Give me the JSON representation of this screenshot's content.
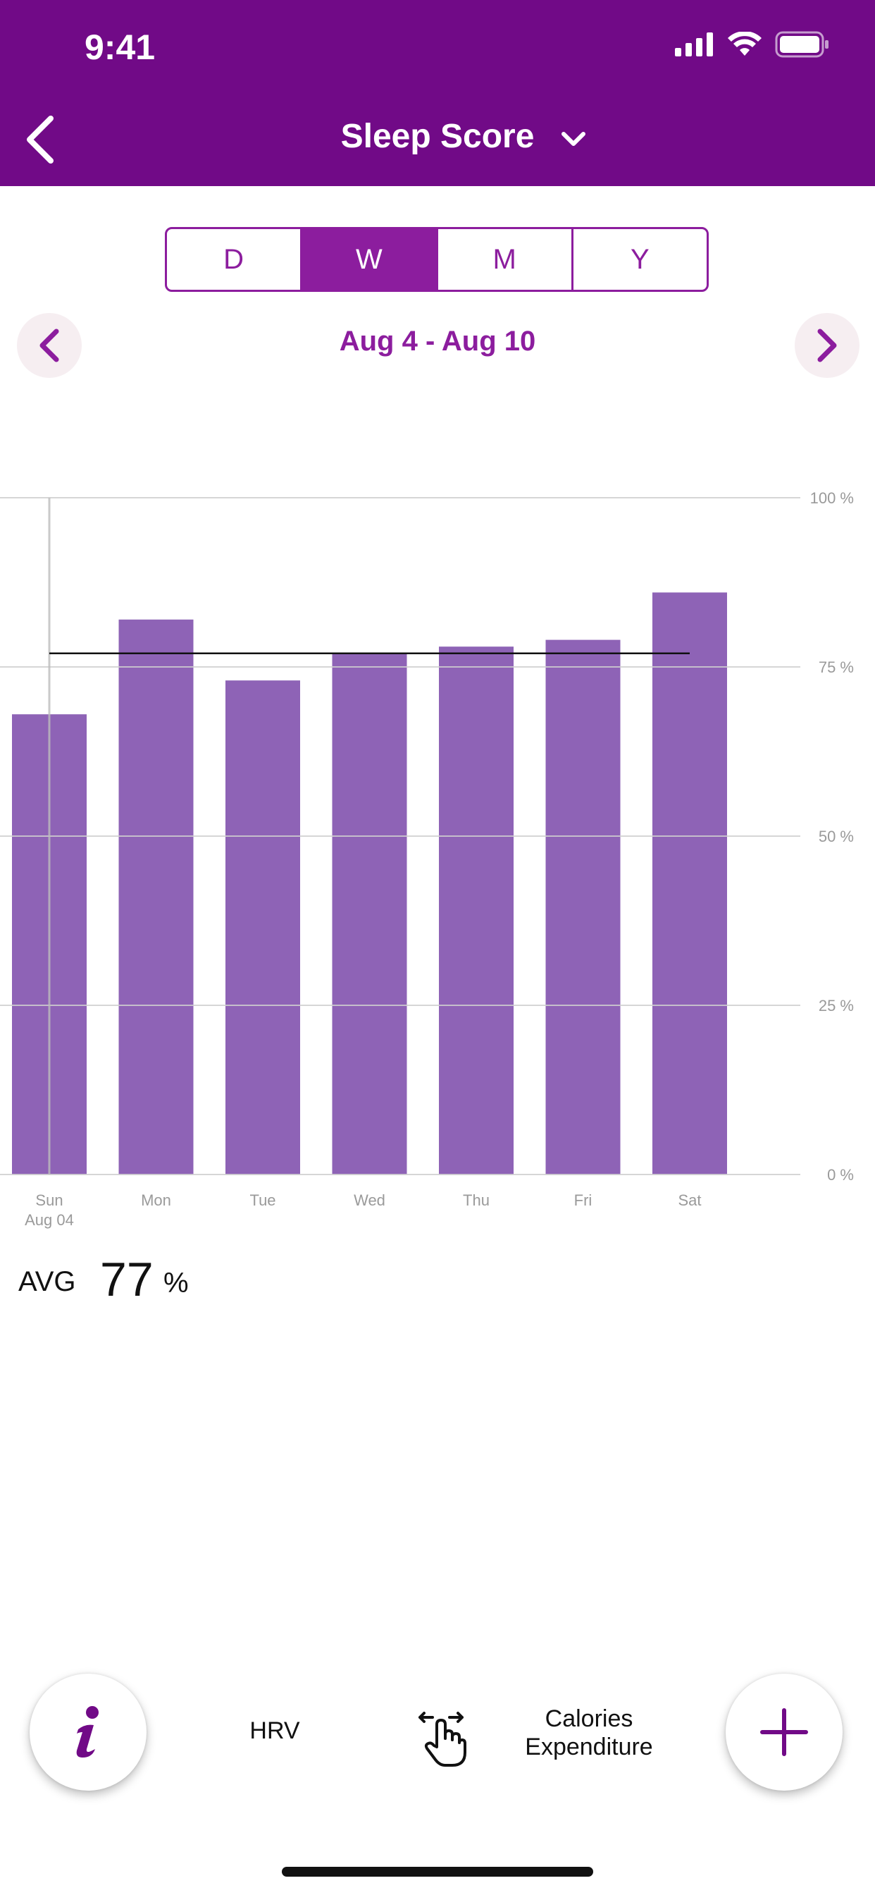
{
  "status_bar": {
    "time": "9:41"
  },
  "header": {
    "title": "Sleep Score"
  },
  "segments": [
    {
      "label": "D",
      "active": false
    },
    {
      "label": "W",
      "active": true
    },
    {
      "label": "M",
      "active": false
    },
    {
      "label": "Y",
      "active": false
    }
  ],
  "date_range": "Aug 4 - Aug 10",
  "chart_data": {
    "type": "bar",
    "categories": [
      "Sun",
      "Mon",
      "Tue",
      "Wed",
      "Thu",
      "Fri",
      "Sat"
    ],
    "category_sublabels": [
      "Aug 04",
      "",
      "",
      "",
      "",
      "",
      ""
    ],
    "values": [
      68,
      82,
      73,
      77,
      78,
      79,
      86
    ],
    "average": 77,
    "ylim": [
      0,
      100
    ],
    "yticks": [
      "0 %",
      "25 %",
      "50 %",
      "75 %",
      "100 %"
    ],
    "ytick_values": [
      0,
      25,
      50,
      75,
      100
    ],
    "selected_index": 0,
    "grid": true,
    "bar_color": "#8E63B6"
  },
  "summary": {
    "avg_label": "AVG",
    "avg_value": "77",
    "avg_unit": "%"
  },
  "bottom_bar": {
    "left_label": "HRV",
    "right_label": "Calories\nExpenditure"
  },
  "colors": {
    "brand": "#710A87",
    "accent": "#8C1D9E",
    "bar": "#8E63B6"
  }
}
